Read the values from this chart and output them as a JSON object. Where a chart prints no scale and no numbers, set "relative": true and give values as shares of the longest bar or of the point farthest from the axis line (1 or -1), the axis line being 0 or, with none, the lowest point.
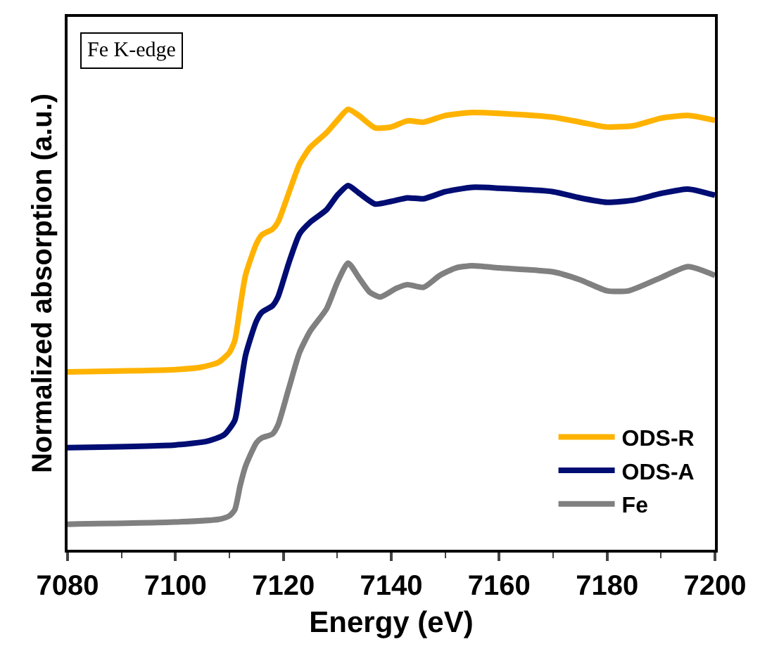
{
  "chart_data": {
    "type": "line",
    "relative": true,
    "xlabel": "Energy (eV)",
    "ylabel": "Normalized absorption (a.u.)",
    "annotations": [
      "Fe K-edge"
    ],
    "xlim": [
      7080,
      7200
    ],
    "xticks": [
      7080,
      7100,
      7120,
      7140,
      7160,
      7180,
      7200
    ],
    "legend": "bottom right",
    "tick_labels": "x",
    "line_style": "solid",
    "marker": "none",
    "series": [
      {
        "name": "ODS-R",
        "color": "#ffb300",
        "x": [
          7080,
          7100,
          7105,
          7108,
          7110,
          7111,
          7112,
          7113,
          7115,
          7116,
          7118,
          7119,
          7121,
          7123,
          7125,
          7128,
          7130,
          7132,
          7134,
          7137,
          7140,
          7143,
          7146,
          7150,
          7155,
          7160,
          7170,
          7175,
          7180,
          7185,
          7190,
          7195,
          7200
        ],
        "values": [
          0.404,
          0.409,
          0.415,
          0.426,
          0.448,
          0.475,
          0.552,
          0.624,
          0.695,
          0.715,
          0.728,
          0.744,
          0.81,
          0.876,
          0.914,
          0.947,
          0.975,
          1,
          0.986,
          0.958,
          0.96,
          0.974,
          0.971,
          0.986,
          0.993,
          0.991,
          0.982,
          0.971,
          0.96,
          0.963,
          0.98,
          0.986,
          0.975
        ]
      },
      {
        "name": "ODS-A",
        "color": "#000d73",
        "x": [
          7080,
          7100,
          7106,
          7109,
          7111,
          7112,
          7113,
          7115,
          7116,
          7118,
          7119,
          7121,
          7123,
          7125,
          7128,
          7130,
          7132,
          7134,
          7137,
          7140,
          7143,
          7146,
          7150,
          7155,
          7160,
          7170,
          7175,
          7180,
          7185,
          7190,
          7195,
          7200
        ],
        "values": [
          0.232,
          0.238,
          0.247,
          0.261,
          0.294,
          0.366,
          0.442,
          0.519,
          0.539,
          0.554,
          0.574,
          0.651,
          0.717,
          0.744,
          0.772,
          0.805,
          0.827,
          0.81,
          0.785,
          0.791,
          0.799,
          0.797,
          0.813,
          0.823,
          0.821,
          0.813,
          0.799,
          0.789,
          0.794,
          0.809,
          0.819,
          0.805
        ]
      },
      {
        "name": "Fe",
        "color": "#808080",
        "x": [
          7080,
          7100,
          7108,
          7110,
          7111,
          7112,
          7113,
          7115,
          7116,
          7118,
          7119,
          7121,
          7123,
          7125,
          7128,
          7130,
          7132,
          7134,
          7136,
          7138,
          7141,
          7143,
          7146,
          7149,
          7152,
          7155,
          7160,
          7170,
          7175,
          7180,
          7184,
          7190,
          7195,
          7200
        ],
        "values": [
          0.058,
          0.063,
          0.069,
          0.077,
          0.091,
          0.146,
          0.19,
          0.243,
          0.254,
          0.263,
          0.283,
          0.366,
          0.448,
          0.497,
          0.547,
          0.607,
          0.651,
          0.618,
          0.585,
          0.574,
          0.594,
          0.602,
          0.596,
          0.623,
          0.64,
          0.645,
          0.64,
          0.631,
          0.613,
          0.588,
          0.588,
          0.618,
          0.643,
          0.623
        ]
      }
    ]
  }
}
